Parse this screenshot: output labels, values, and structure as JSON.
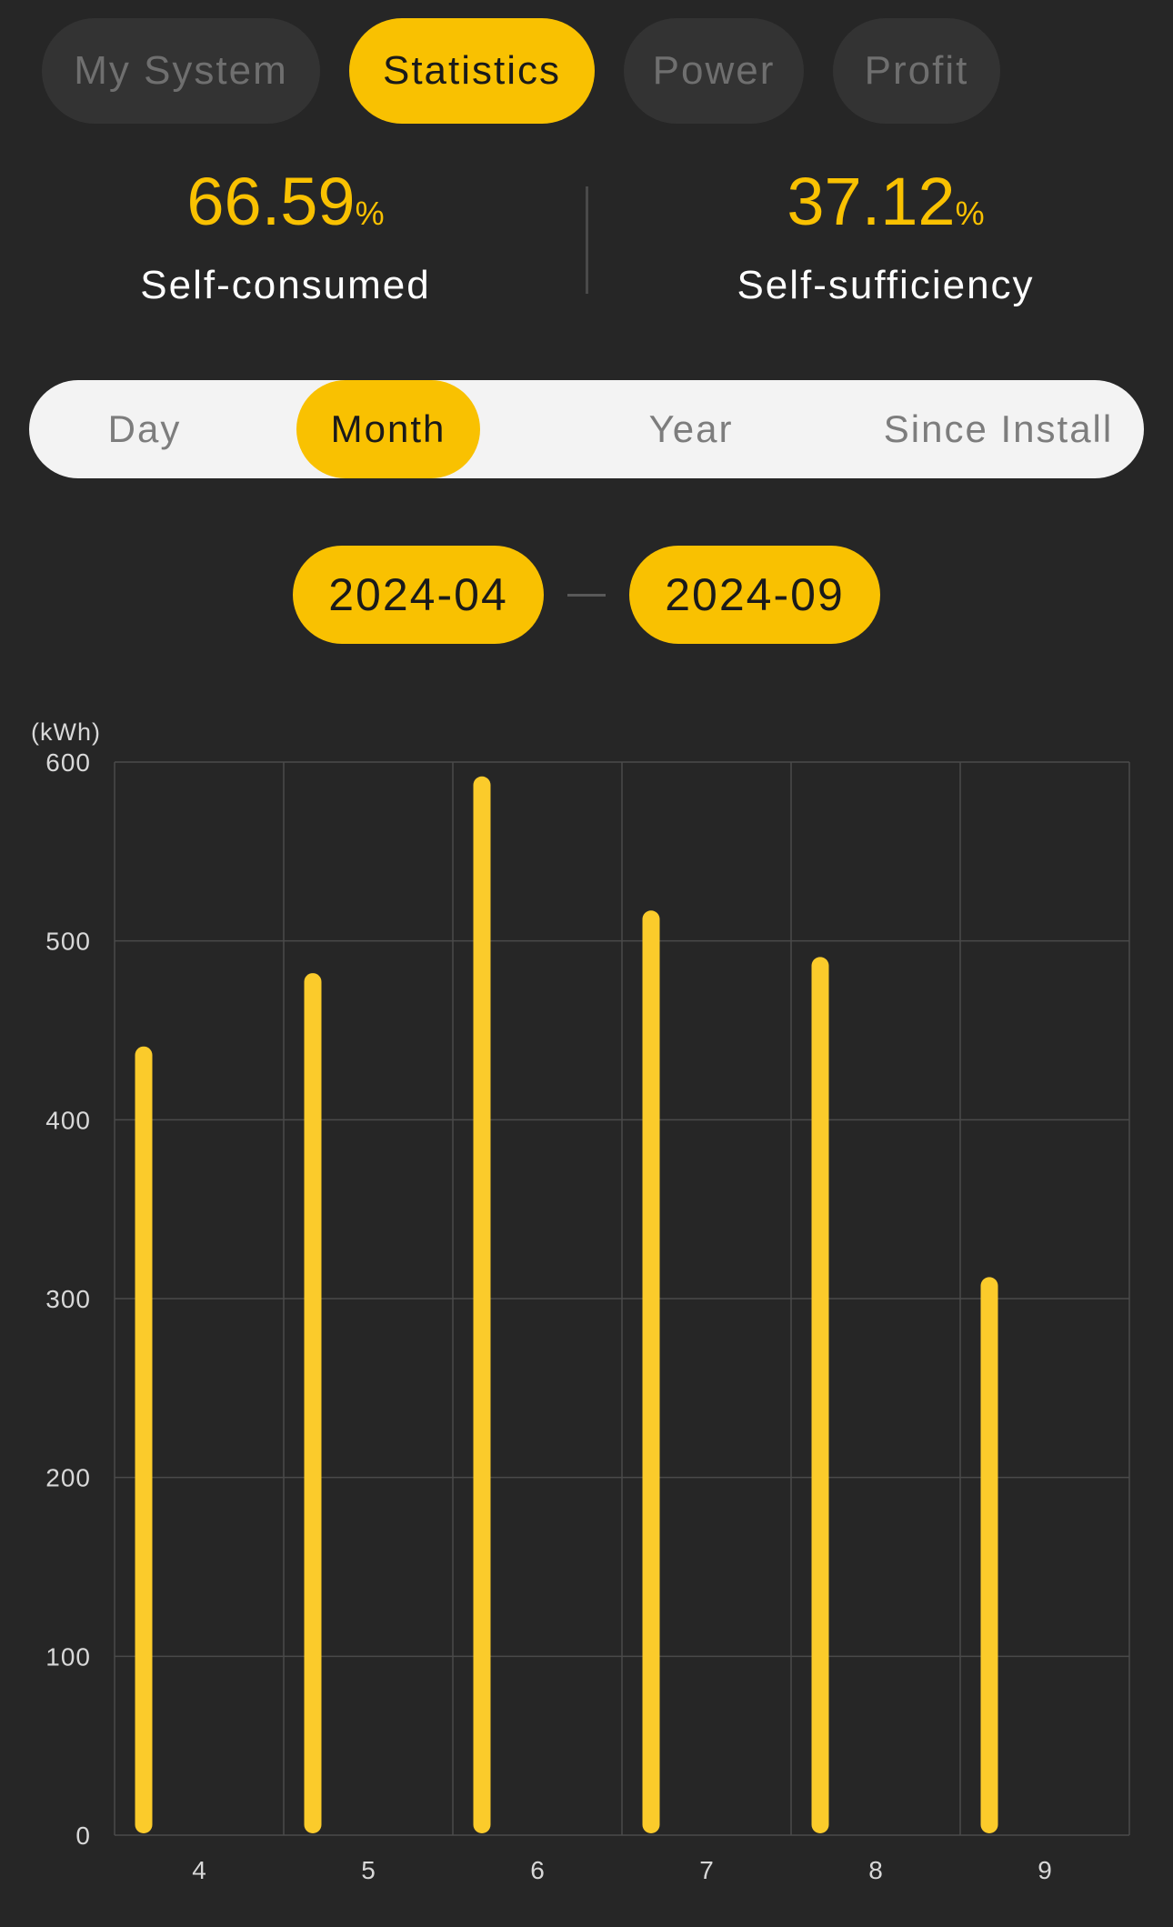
{
  "top_tabs": [
    {
      "label": "My System",
      "active": false
    },
    {
      "label": "Statistics",
      "active": true
    },
    {
      "label": "Power",
      "active": false
    },
    {
      "label": "Profit",
      "active": false
    }
  ],
  "stats": {
    "self_consumed": {
      "value": "66.59",
      "unit": "%",
      "label": "Self-consumed"
    },
    "self_sufficiency": {
      "value": "37.12",
      "unit": "%",
      "label": "Self-sufficiency"
    }
  },
  "period_tabs": [
    {
      "label": "Day",
      "active": false
    },
    {
      "label": "Month",
      "active": true
    },
    {
      "label": "Year",
      "active": false
    },
    {
      "label": "Since Install",
      "active": false
    }
  ],
  "date_range": {
    "start": "2024-04",
    "end": "2024-09"
  },
  "colors": {
    "accent": "#f9c101",
    "bar": "#fbcb2b",
    "background": "#262626",
    "grid": "#4a4a4a"
  },
  "chart_data": {
    "type": "bar",
    "ylabel": "(kWh)",
    "categories": [
      "4",
      "5",
      "6",
      "7",
      "8",
      "9"
    ],
    "values": [
      441,
      482,
      592,
      517,
      491,
      312
    ],
    "ylim": [
      0,
      600
    ],
    "yticks": [
      "0",
      "100",
      "200",
      "300",
      "400",
      "500",
      "600"
    ],
    "grid": true
  }
}
